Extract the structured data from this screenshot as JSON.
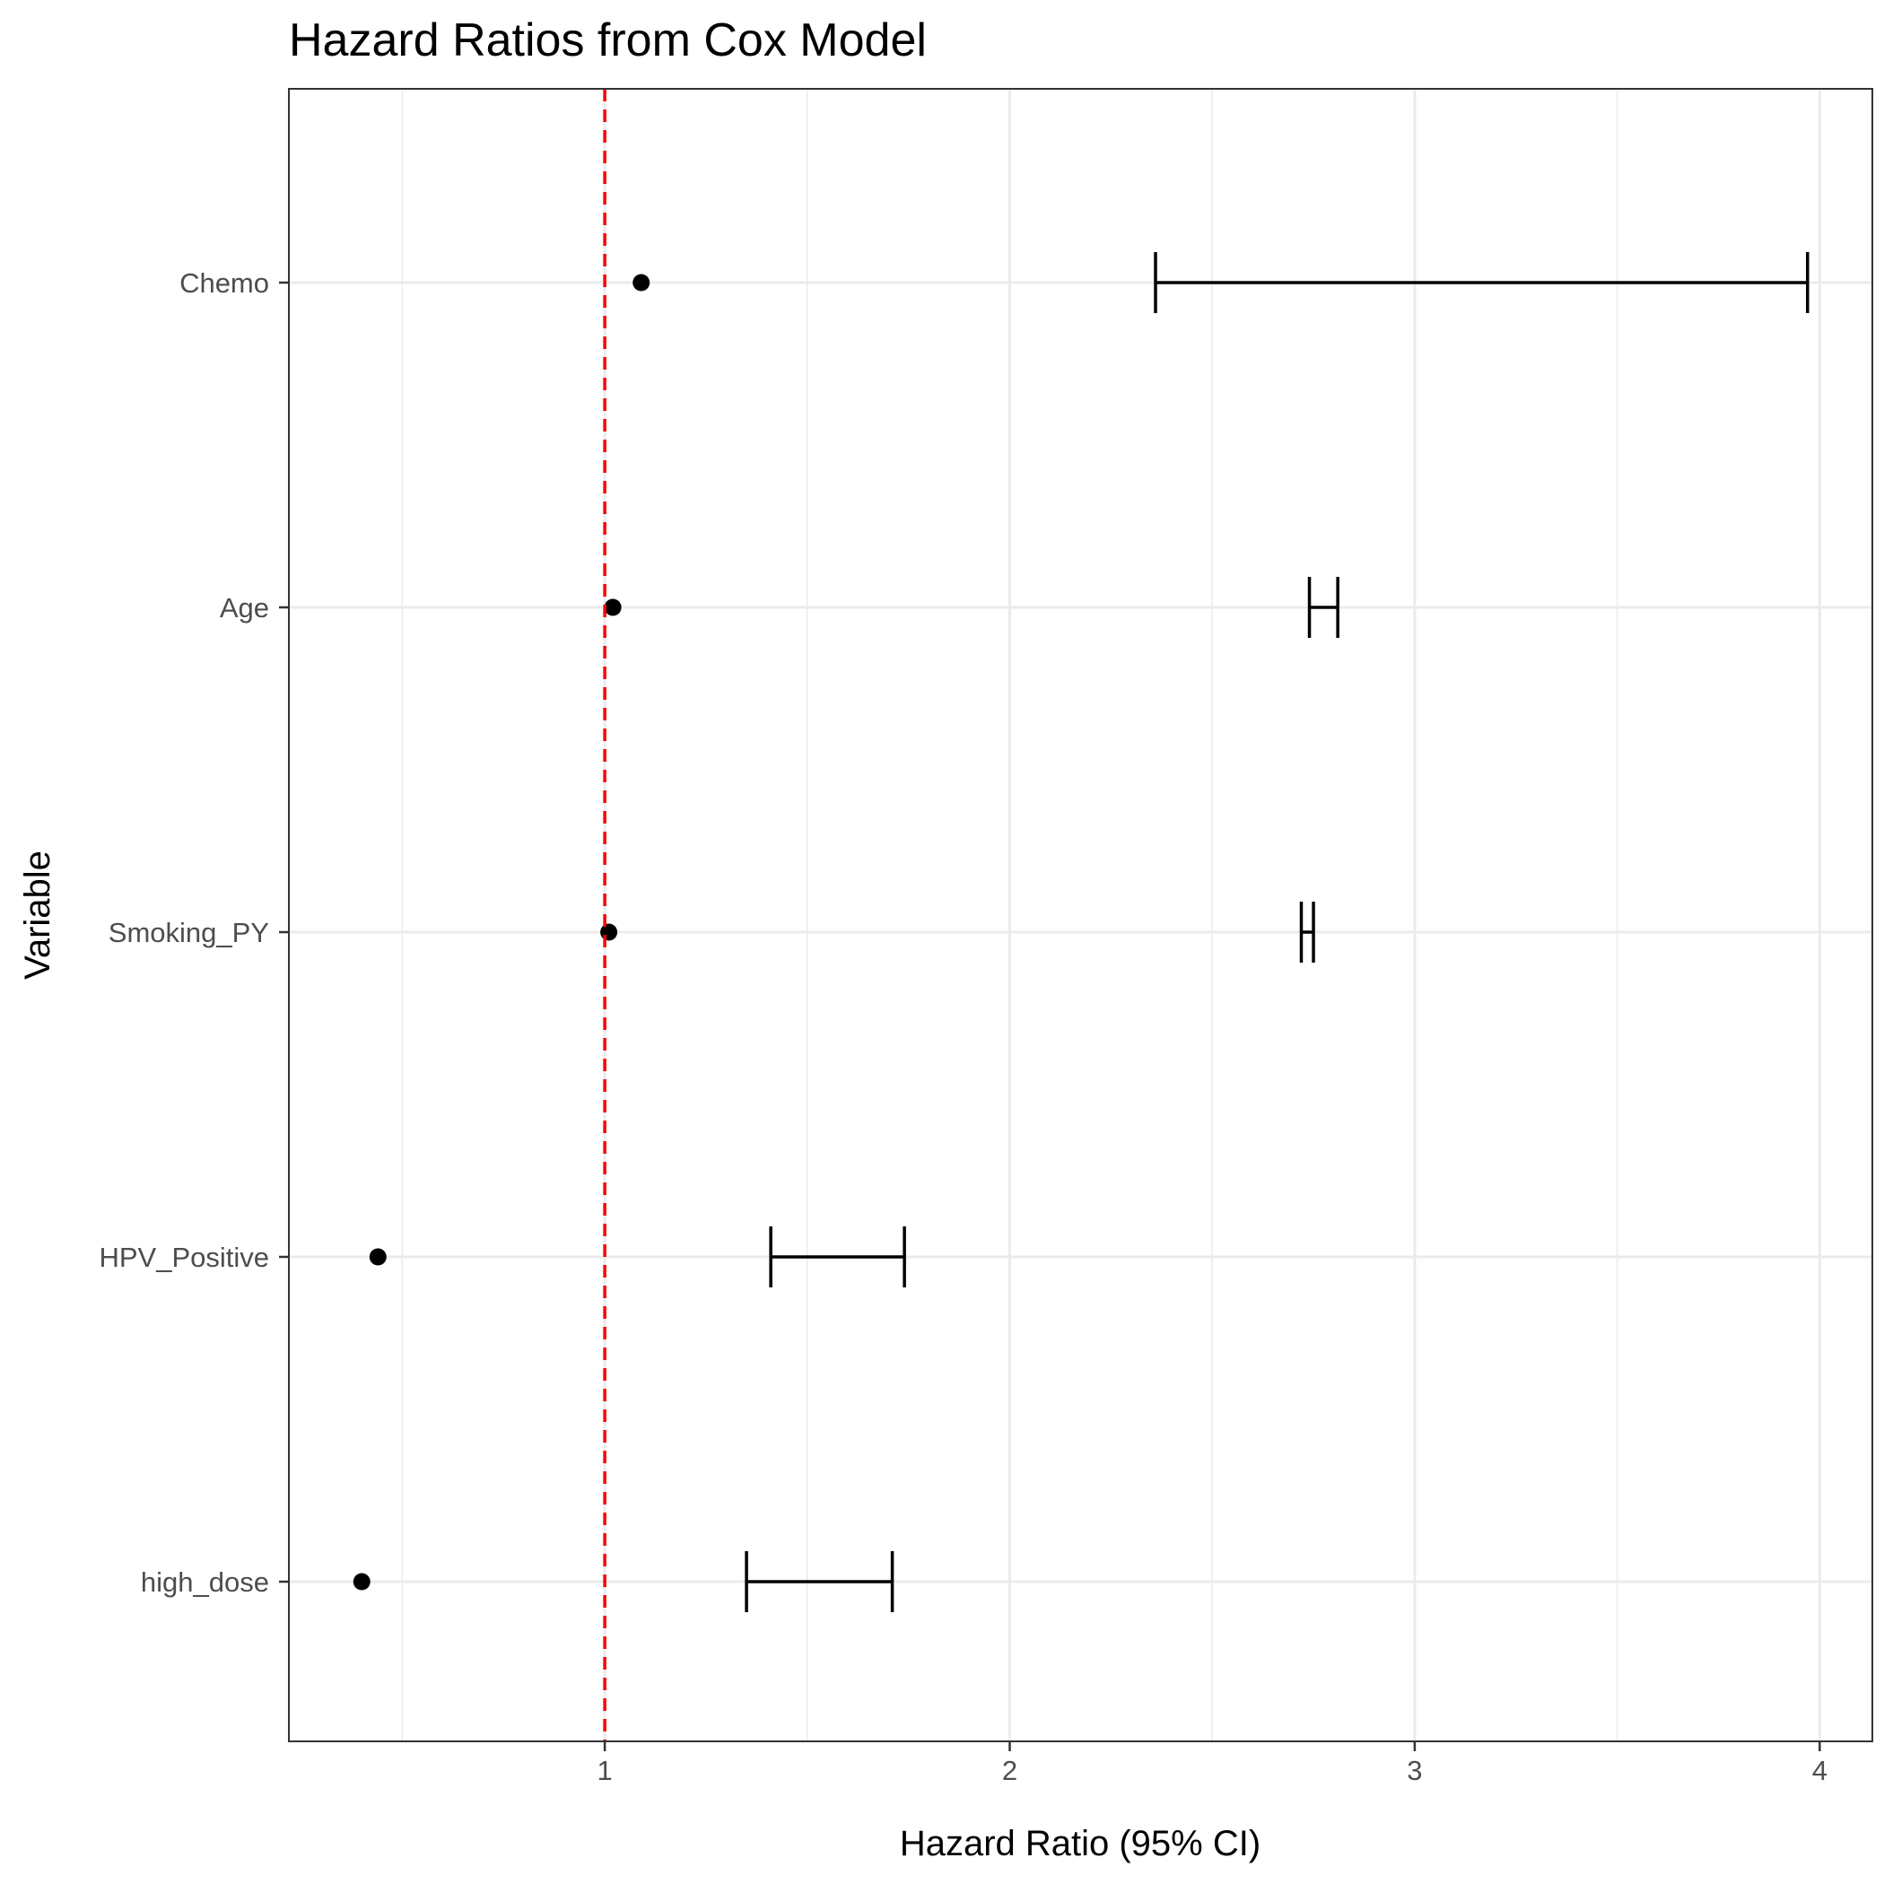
{
  "chart_data": {
    "type": "forest",
    "title": "Hazard Ratios from Cox Model",
    "xlabel": "Hazard Ratio (95% CI)",
    "ylabel": "Variable",
    "xlim": [
      0.22,
      4.13
    ],
    "x_ticks": [
      1,
      2,
      3,
      4
    ],
    "x_minor_ticks": [
      0.5,
      1.5,
      2.5,
      3.5
    ],
    "grid": true,
    "reference_line": {
      "x": 1,
      "color": "#ff0000",
      "style": "dashed"
    },
    "point_color": "#000000",
    "errorbar_color": "#000000",
    "categories": [
      "Chemo",
      "Age",
      "Smoking_PY",
      "HPV_Positive",
      "high_dose"
    ],
    "points": [
      {
        "variable": "Chemo",
        "hr": 1.09,
        "ci_low": 2.36,
        "ci_high": 3.97
      },
      {
        "variable": "Age",
        "hr": 1.02,
        "ci_low": 2.74,
        "ci_high": 2.81
      },
      {
        "variable": "Smoking_PY",
        "hr": 1.01,
        "ci_low": 2.72,
        "ci_high": 2.75
      },
      {
        "variable": "HPV_Positive",
        "hr": 0.44,
        "ci_low": 1.41,
        "ci_high": 1.74
      },
      {
        "variable": "high_dose",
        "hr": 0.4,
        "ci_low": 1.35,
        "ci_high": 1.71
      }
    ]
  }
}
